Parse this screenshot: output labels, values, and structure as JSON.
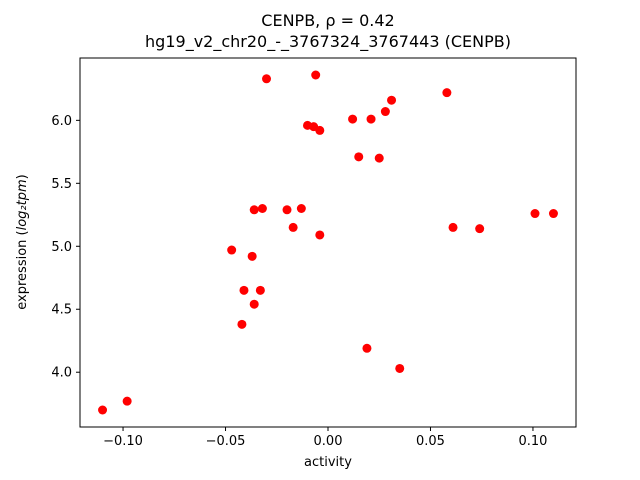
{
  "chart_data": {
    "type": "scatter",
    "title_line1": "CENPB, ρ = 0.42",
    "title_line2": "hg19_v2_chr20_-_3767324_3767443 (CENPB)",
    "xlabel": "activity",
    "ylabel_prefix": "expression (",
    "ylabel_math": "log₂tpm",
    "ylabel_suffix": ")",
    "marker_color": "#ff0000",
    "background_color": "#ffffff",
    "xlim": [
      -0.121,
      0.121
    ],
    "ylim": [
      3.565,
      6.495
    ],
    "xtick_values": [
      -0.1,
      -0.05,
      0.0,
      0.05,
      0.1
    ],
    "xtick_labels": [
      "−0.10",
      "−0.05",
      "0.00",
      "0.05",
      "0.10"
    ],
    "ytick_values": [
      4.0,
      4.5,
      5.0,
      5.5,
      6.0
    ],
    "ytick_labels": [
      "4.0",
      "4.5",
      "5.0",
      "5.5",
      "6.0"
    ],
    "points": [
      [
        -0.11,
        3.7
      ],
      [
        -0.098,
        3.77
      ],
      [
        -0.047,
        4.97
      ],
      [
        -0.042,
        4.38
      ],
      [
        -0.041,
        4.65
      ],
      [
        -0.037,
        4.92
      ],
      [
        -0.036,
        4.54
      ],
      [
        -0.033,
        4.65
      ],
      [
        -0.036,
        5.29
      ],
      [
        -0.032,
        5.3
      ],
      [
        -0.03,
        6.33
      ],
      [
        -0.02,
        5.29
      ],
      [
        -0.017,
        5.15
      ],
      [
        -0.013,
        5.3
      ],
      [
        -0.01,
        5.96
      ],
      [
        -0.007,
        5.95
      ],
      [
        -0.006,
        6.36
      ],
      [
        -0.004,
        5.92
      ],
      [
        -0.004,
        5.09
      ],
      [
        0.012,
        6.01
      ],
      [
        0.015,
        5.71
      ],
      [
        0.019,
        4.19
      ],
      [
        0.021,
        6.01
      ],
      [
        0.025,
        5.7
      ],
      [
        0.028,
        6.07
      ],
      [
        0.031,
        6.16
      ],
      [
        0.035,
        4.03
      ],
      [
        0.058,
        6.22
      ],
      [
        0.061,
        5.15
      ],
      [
        0.074,
        5.14
      ],
      [
        0.101,
        5.26
      ],
      [
        0.11,
        5.26
      ]
    ]
  }
}
